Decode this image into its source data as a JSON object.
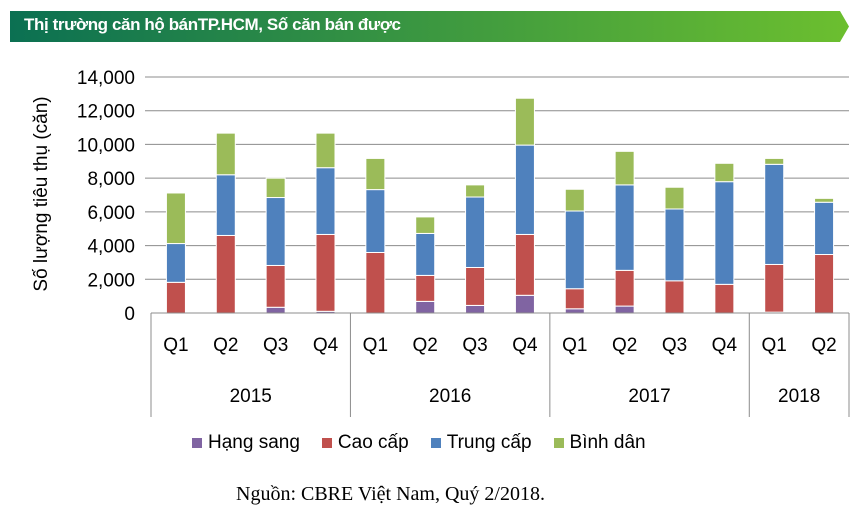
{
  "banner": {
    "title": "Thị trường căn hộ bánTP.HCM, Số căn bán được",
    "color_start": "#0b7052",
    "color_end": "#6cbf2f"
  },
  "source": "Nguồn: CBRE Việt Nam, Quý 2/2018.",
  "chart_data": {
    "type": "bar",
    "stacked": true,
    "title": "Thị trường căn hộ bánTP.HCM, Số căn bán được",
    "xlabel": "",
    "ylabel": "Số lượng tiêu thụ (căn)",
    "ylim": [
      0,
      14000
    ],
    "yticks": [
      0,
      2000,
      4000,
      6000,
      8000,
      10000,
      12000,
      14000
    ],
    "ytick_labels": [
      "0",
      "2,000",
      "4,000",
      "6,000",
      "8,000",
      "10,000",
      "12,000",
      "14,000"
    ],
    "grid": true,
    "legend_position": "bottom",
    "categories": [
      "Q1",
      "Q2",
      "Q3",
      "Q4",
      "Q1",
      "Q2",
      "Q3",
      "Q4",
      "Q1",
      "Q2",
      "Q3",
      "Q4",
      "Q1",
      "Q2"
    ],
    "groups": [
      {
        "label": "2015",
        "count": 4
      },
      {
        "label": "2016",
        "count": 4
      },
      {
        "label": "2017",
        "count": 4
      },
      {
        "label": "2018",
        "count": 2
      }
    ],
    "series": [
      {
        "name": "Hạng sang",
        "color": "#8064a2",
        "values": [
          0,
          0,
          340,
          100,
          0,
          690,
          450,
          1050,
          250,
          410,
          0,
          0,
          50,
          0
        ]
      },
      {
        "name": "Cao cấp",
        "color": "#c0504d",
        "values": [
          1820,
          4600,
          2480,
          4560,
          3590,
          1540,
          2250,
          3610,
          1190,
          2120,
          1910,
          1700,
          2830,
          3470
        ]
      },
      {
        "name": "Trung cấp",
        "color": "#4f81bd",
        "values": [
          2300,
          3600,
          4030,
          3960,
          3730,
          2490,
          4180,
          5300,
          4610,
          5070,
          4260,
          6090,
          5940,
          3100
        ]
      },
      {
        "name": "Bình dân",
        "color": "#9bbb59",
        "values": [
          3000,
          2470,
          1150,
          2050,
          1850,
          980,
          720,
          2780,
          1290,
          1990,
          1290,
          1090,
          350,
          230
        ]
      }
    ]
  }
}
